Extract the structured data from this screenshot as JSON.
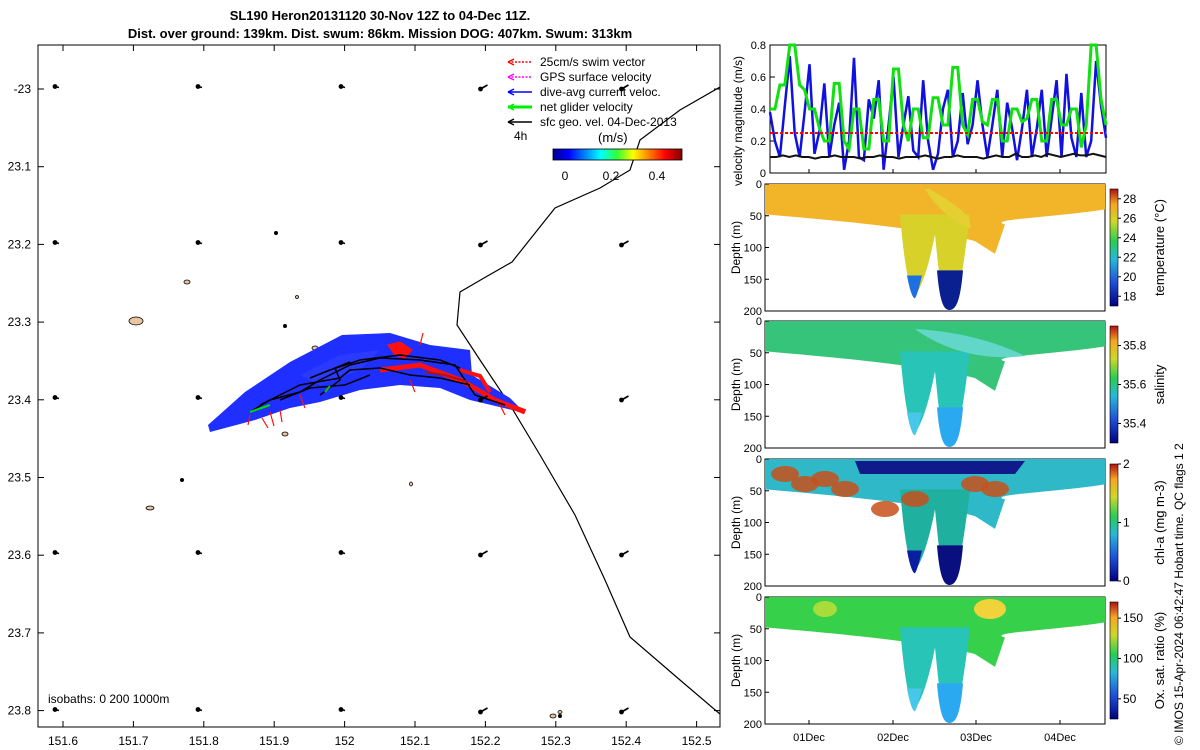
{
  "title_line1": "SL190 Heron20131120 30-Nov 12Z to 04-Dec 11Z.",
  "title_line2": "Dist. over ground: 139km. Dist. swum: 86km. Mission DOG: 407km. Swum: 313km",
  "credit": "© IMOS 15-Apr-2024 06:42:47 Hobart time. QC flags 1  2",
  "map": {
    "lon_ticks": [
      "151.6",
      "151.7",
      "151.8",
      "151.9",
      "152",
      "152.1",
      "152.2",
      "152.3",
      "152.4",
      "152.5"
    ],
    "lat_ticks": [
      "-23",
      "23.1",
      "23.2",
      "23.3",
      "23.4",
      "23.5",
      "23.6",
      "23.7",
      "23.8"
    ],
    "legend": [
      {
        "label": "25cm/s swim vector",
        "color": "#ff0000"
      },
      {
        "label": "GPS surface velocity",
        "color": "#ff00ff"
      },
      {
        "label": "dive-avg current veloc.",
        "color": "#0000ff"
      },
      {
        "label": "net glider velocity",
        "color": "#00ee00"
      },
      {
        "label": "sfc geo. vel. 04-Dec-2013",
        "color": "#000000"
      }
    ],
    "interval_label": "4h",
    "colorbar_label": "(m/s)",
    "colorbar_ticks": [
      "0",
      "0.2",
      "0.4"
    ],
    "isobath_label": "isobaths: 0   200  1000m"
  },
  "velocity_panel": {
    "ylabel": "velocity magnitude (m/s)",
    "yticks": [
      "0",
      "0.2",
      "0.4",
      "0.6",
      "0.8"
    ],
    "ylim": [
      0,
      0.8
    ],
    "series": [
      {
        "name": "dive-avg current veloc.",
        "color": "#1010e0",
        "values": [
          0.38,
          0.2,
          0.1,
          0.42,
          0.73,
          0.25,
          0.1,
          0.38,
          0.68,
          0.12,
          0.26,
          0.56,
          0.1,
          0.3,
          0.44,
          0.02,
          0.2,
          0.72,
          0.1,
          0.08,
          0.46,
          0.34,
          0.58,
          0.02,
          0.3,
          0.6,
          0.1,
          0.3,
          0.48,
          0.14,
          0.1,
          0.58,
          0.2,
          0.02,
          0.12,
          0.4,
          0.52,
          0.1,
          0.2,
          0.5,
          0.18,
          0.3,
          0.58,
          0.3,
          0.1,
          0.3,
          0.52,
          0.1,
          0.44,
          0.28,
          0.08,
          0.28,
          0.52,
          0.1,
          0.28,
          0.52,
          0.1,
          0.34,
          0.58,
          0.1,
          0.62,
          0.22,
          0.1,
          0.5,
          0.1,
          0.2,
          0.7,
          0.42,
          0.22
        ]
      },
      {
        "name": "net glider velocity",
        "color": "#11e011",
        "values": [
          0.4,
          0.4,
          0.55,
          0.55,
          0.8,
          0.8,
          0.55,
          0.52,
          0.4,
          0.4,
          0.28,
          0.2,
          0.2,
          0.56,
          0.56,
          0.2,
          0.15,
          0.4,
          0.4,
          0.15,
          0.15,
          0.46,
          0.46,
          0.2,
          0.2,
          0.65,
          0.65,
          0.3,
          0.2,
          0.4,
          0.4,
          0.22,
          0.22,
          0.47,
          0.47,
          0.3,
          0.3,
          0.66,
          0.66,
          0.3,
          0.24,
          0.46,
          0.46,
          0.32,
          0.3,
          0.46,
          0.46,
          0.2,
          0.2,
          0.4,
          0.4,
          0.32,
          0.34,
          0.46,
          0.46,
          0.2,
          0.2,
          0.46,
          0.46,
          0.3,
          0.3,
          0.4,
          0.4,
          0.16,
          0.3,
          0.8,
          0.8,
          0.46,
          0.3
        ]
      },
      {
        "name": "25cm/s swim vector",
        "color": "#ff0000",
        "values": [
          0.25,
          0.25
        ]
      },
      {
        "name": "sfc geo. vel.",
        "color": "#111111",
        "values": [
          0.1,
          0.1,
          0.11,
          0.1,
          0.11,
          0.1,
          0.1,
          0.09,
          0.1,
          0.1,
          0.11,
          0.1,
          0.1,
          0.1,
          0.09,
          0.1,
          0.1,
          0.11,
          0.1,
          0.1,
          0.09,
          0.1,
          0.1,
          0.1,
          0.11,
          0.1,
          0.09,
          0.1,
          0.1,
          0.11,
          0.1,
          0.1,
          0.1,
          0.09,
          0.1,
          0.11,
          0.1,
          0.1,
          0.12,
          0.1,
          0.1,
          0.11,
          0.1,
          0.12,
          0.11,
          0.1,
          0.11,
          0.12,
          0.11,
          0.11,
          0.12,
          0.11,
          0.1
        ]
      }
    ]
  },
  "section_panels": [
    {
      "name": "temperature",
      "clabel": "temperature (°C)",
      "cticks": [
        "18",
        "20",
        "22",
        "24",
        "26",
        "28"
      ],
      "crange": [
        17,
        29
      ]
    },
    {
      "name": "salinity",
      "clabel": "salinity",
      "cticks": [
        "35.4",
        "35.6",
        "35.8"
      ],
      "crange": [
        35.3,
        35.9
      ]
    },
    {
      "name": "chla",
      "clabel": "chl-a (mg m-3)",
      "cticks": [
        "0",
        "1",
        "2"
      ],
      "crange": [
        0,
        2
      ]
    },
    {
      "name": "oxygen",
      "clabel": "Ox. sat. ratio (%)",
      "cticks": [
        "50",
        "100",
        "150"
      ],
      "crange": [
        25,
        170
      ]
    }
  ],
  "depth_label": "Depth (m)",
  "depth_ticks": [
    "0",
    "50",
    "100",
    "150",
    "200"
  ],
  "time_ticks": [
    "01Dec",
    "02Dec",
    "03Dec",
    "04Dec"
  ]
}
